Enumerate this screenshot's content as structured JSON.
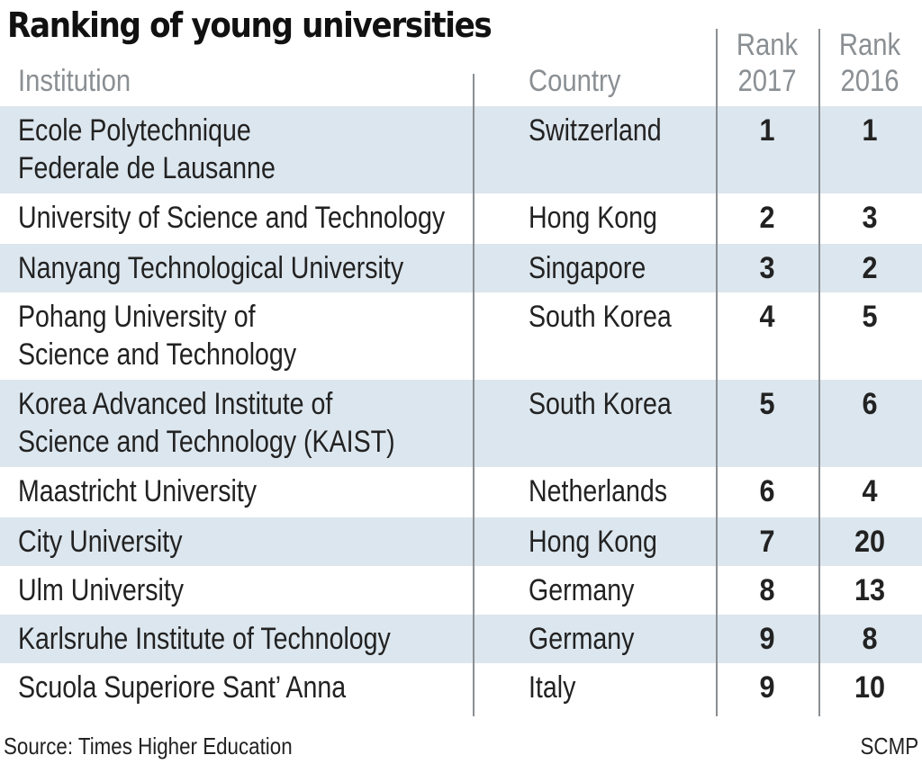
{
  "title": "Ranking of young universities",
  "headers": {
    "institution": "Institution",
    "country": "Country",
    "rank2017_line1": "Rank",
    "rank2017_line2": "2017",
    "rank2016_line1": "Rank",
    "rank2016_line2": "2016"
  },
  "source": "Source: Times Higher Education",
  "credit": "SCMP",
  "colors": {
    "shaded_row": "#dce6ee",
    "header_text": "#8a8f93",
    "divider": "#8a8f93"
  },
  "chart_data": {
    "type": "table",
    "title": "Ranking of young universities",
    "columns": [
      "Institution",
      "Country",
      "Rank 2017",
      "Rank 2016"
    ],
    "rows": [
      {
        "institution": [
          "Ecole Polytechnique",
          "Federale de Lausanne"
        ],
        "country": "Switzerland",
        "rank_2017": 1,
        "rank_2016": 1
      },
      {
        "institution": [
          "University of Science and Technology"
        ],
        "country": "Hong Kong",
        "rank_2017": 2,
        "rank_2016": 3
      },
      {
        "institution": [
          "Nanyang Technological University"
        ],
        "country": "Singapore",
        "rank_2017": 3,
        "rank_2016": 2
      },
      {
        "institution": [
          "Pohang University of",
          "Science and Technology"
        ],
        "country": "South Korea",
        "rank_2017": 4,
        "rank_2016": 5
      },
      {
        "institution": [
          "Korea Advanced Institute of",
          "Science and Technology (KAIST)"
        ],
        "country": "South Korea",
        "rank_2017": 5,
        "rank_2016": 6
      },
      {
        "institution": [
          "Maastricht University"
        ],
        "country": "Netherlands",
        "rank_2017": 6,
        "rank_2016": 4
      },
      {
        "institution": [
          "City University"
        ],
        "country": "Hong Kong",
        "rank_2017": 7,
        "rank_2016": 20
      },
      {
        "institution": [
          "Ulm University"
        ],
        "country": "Germany",
        "rank_2017": 8,
        "rank_2016": 13
      },
      {
        "institution": [
          "Karlsruhe Institute of Technology"
        ],
        "country": "Germany",
        "rank_2017": 9,
        "rank_2016": 8
      },
      {
        "institution": [
          "Scuola Superiore Sant’ Anna"
        ],
        "country": "Italy",
        "rank_2017": 9,
        "rank_2016": 10
      }
    ]
  }
}
